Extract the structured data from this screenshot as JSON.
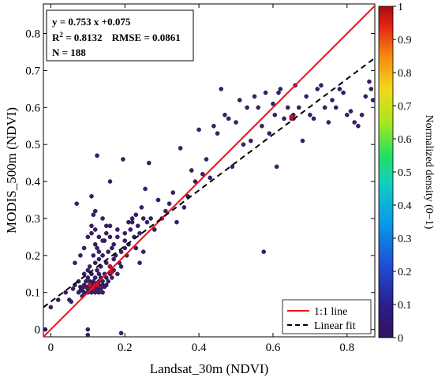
{
  "chart_data": {
    "type": "scatter",
    "xlabel": "Landsat_30m (NDVI)",
    "ylabel": "MODIS_500m (NDVI)",
    "xlim": [
      -0.02,
      0.875
    ],
    "ylim": [
      -0.02,
      0.88
    ],
    "x_ticks": [
      "0",
      "0.2",
      "0.4",
      "0.6",
      "0.8"
    ],
    "x_tick_values": [
      0,
      0.2,
      0.4,
      0.6,
      0.8
    ],
    "y_ticks": [
      "0",
      "0.1",
      "0.2",
      "0.3",
      "0.4",
      "0.5",
      "0.6",
      "0.7",
      "0.8"
    ],
    "y_tick_values": [
      0,
      0.1,
      0.2,
      0.3,
      0.4,
      0.5,
      0.6,
      0.7,
      0.8
    ],
    "grid": false,
    "stats": {
      "equation": "y = 0.753 x +0.075",
      "r2_label": "R",
      "r2_sup": "2",
      "r2_value": " = 0.8132",
      "rmse": "RMSE = 0.0861",
      "n": "N = 188"
    },
    "fit": {
      "slope": 0.753,
      "intercept": 0.075
    },
    "legend": {
      "position": "bottom-right",
      "items": [
        {
          "label": "1:1 line",
          "color": "#e8141c",
          "style": "solid"
        },
        {
          "label": "Linear fit",
          "color": "#000000",
          "style": "dashed"
        }
      ]
    },
    "colorbar": {
      "label": "Normalized density (0−1)",
      "ticks": [
        "0",
        "0.1",
        "0.2",
        "0.3",
        "0.4",
        "0.5",
        "0.6",
        "0.7",
        "0.8",
        "0.9",
        "1"
      ],
      "tick_values": [
        0,
        0.1,
        0.2,
        0.3,
        0.4,
        0.5,
        0.6,
        0.7,
        0.8,
        0.9,
        1
      ]
    },
    "colors": {
      "point_low": "#3a1e6a",
      "point_high": "#c8102e",
      "one_to_one": "#e8141c",
      "fit": "#000000"
    },
    "points": [
      [
        -0.015,
        0.0
      ],
      [
        0.0,
        0.06
      ],
      [
        0.02,
        0.08
      ],
      [
        0.04,
        0.1
      ],
      [
        0.05,
        0.08
      ],
      [
        0.055,
        0.075
      ],
      [
        0.06,
        0.11
      ],
      [
        0.065,
        0.12
      ],
      [
        0.065,
        0.18
      ],
      [
        0.07,
        0.34
      ],
      [
        0.075,
        0.1
      ],
      [
        0.075,
        0.13
      ],
      [
        0.08,
        0.105
      ],
      [
        0.08,
        0.115
      ],
      [
        0.085,
        0.09
      ],
      [
        0.085,
        0.11
      ],
      [
        0.09,
        0.12
      ],
      [
        0.09,
        0.1
      ],
      [
        0.09,
        0.15
      ],
      [
        0.095,
        0.115
      ],
      [
        0.095,
        0.13
      ],
      [
        0.1,
        0.1
      ],
      [
        0.1,
        0.11
      ],
      [
        0.1,
        0.14
      ],
      [
        0.1,
        0.16
      ],
      [
        0.1,
        0.0
      ],
      [
        0.1,
        -0.015
      ],
      [
        0.105,
        0.12
      ],
      [
        0.105,
        0.13
      ],
      [
        0.105,
        0.17
      ],
      [
        0.11,
        0.1
      ],
      [
        0.11,
        0.115
      ],
      [
        0.11,
        0.125
      ],
      [
        0.11,
        0.15
      ],
      [
        0.11,
        0.36
      ],
      [
        0.11,
        0.26
      ],
      [
        0.115,
        0.11
      ],
      [
        0.115,
        0.13
      ],
      [
        0.115,
        0.2
      ],
      [
        0.115,
        0.31
      ],
      [
        0.12,
        0.1
      ],
      [
        0.12,
        0.12
      ],
      [
        0.12,
        0.14
      ],
      [
        0.12,
        0.18
      ],
      [
        0.12,
        0.23
      ],
      [
        0.12,
        0.27
      ],
      [
        0.125,
        0.11
      ],
      [
        0.125,
        0.125
      ],
      [
        0.125,
        0.16
      ],
      [
        0.125,
        0.22
      ],
      [
        0.125,
        0.47
      ],
      [
        0.13,
        0.1
      ],
      [
        0.13,
        0.12
      ],
      [
        0.13,
        0.13
      ],
      [
        0.13,
        0.15
      ],
      [
        0.13,
        0.19
      ],
      [
        0.13,
        0.25
      ],
      [
        0.135,
        0.11
      ],
      [
        0.135,
        0.14
      ],
      [
        0.135,
        0.17
      ],
      [
        0.14,
        0.1
      ],
      [
        0.14,
        0.12
      ],
      [
        0.14,
        0.13
      ],
      [
        0.14,
        0.2
      ],
      [
        0.14,
        0.3
      ],
      [
        0.145,
        0.115
      ],
      [
        0.145,
        0.15
      ],
      [
        0.145,
        0.24
      ],
      [
        0.15,
        0.12
      ],
      [
        0.15,
        0.14
      ],
      [
        0.15,
        0.18
      ],
      [
        0.15,
        0.28
      ],
      [
        0.155,
        0.13
      ],
      [
        0.155,
        0.21
      ],
      [
        0.16,
        0.15
      ],
      [
        0.16,
        0.17
      ],
      [
        0.16,
        0.25
      ],
      [
        0.16,
        0.4
      ],
      [
        0.165,
        0.14
      ],
      [
        0.165,
        0.22
      ],
      [
        0.17,
        0.16
      ],
      [
        0.17,
        0.19
      ],
      [
        0.175,
        0.2
      ],
      [
        0.18,
        0.15
      ],
      [
        0.18,
        0.27
      ],
      [
        0.185,
        0.18
      ],
      [
        0.19,
        0.17
      ],
      [
        0.19,
        -0.01
      ],
      [
        0.195,
        0.46
      ],
      [
        0.2,
        0.22
      ],
      [
        0.2,
        0.24
      ],
      [
        0.205,
        0.2
      ],
      [
        0.21,
        0.29
      ],
      [
        0.215,
        0.27
      ],
      [
        0.22,
        0.3
      ],
      [
        0.225,
        0.25
      ],
      [
        0.23,
        0.31
      ],
      [
        0.235,
        0.28
      ],
      [
        0.24,
        0.18
      ],
      [
        0.245,
        0.33
      ],
      [
        0.25,
        0.21
      ],
      [
        0.255,
        0.38
      ],
      [
        0.26,
        0.29
      ],
      [
        0.265,
        0.45
      ],
      [
        0.27,
        0.3
      ],
      [
        0.28,
        0.27
      ],
      [
        0.29,
        0.35
      ],
      [
        0.3,
        0.3
      ],
      [
        0.31,
        0.32
      ],
      [
        0.32,
        0.34
      ],
      [
        0.33,
        0.37
      ],
      [
        0.34,
        0.29
      ],
      [
        0.35,
        0.49
      ],
      [
        0.36,
        0.33
      ],
      [
        0.37,
        0.36
      ],
      [
        0.38,
        0.43
      ],
      [
        0.39,
        0.4
      ],
      [
        0.4,
        0.54
      ],
      [
        0.41,
        0.42
      ],
      [
        0.42,
        0.46
      ],
      [
        0.43,
        0.41
      ],
      [
        0.44,
        0.55
      ],
      [
        0.45,
        0.53
      ],
      [
        0.46,
        0.65
      ],
      [
        0.47,
        0.58
      ],
      [
        0.48,
        0.57
      ],
      [
        0.49,
        0.44
      ],
      [
        0.5,
        0.56
      ],
      [
        0.51,
        0.62
      ],
      [
        0.52,
        0.5
      ],
      [
        0.53,
        0.6
      ],
      [
        0.54,
        0.51
      ],
      [
        0.55,
        0.63
      ],
      [
        0.56,
        0.6
      ],
      [
        0.57,
        0.55
      ],
      [
        0.575,
        0.21
      ],
      [
        0.58,
        0.64
      ],
      [
        0.59,
        0.53
      ],
      [
        0.6,
        0.61
      ],
      [
        0.605,
        0.58
      ],
      [
        0.61,
        0.44
      ],
      [
        0.615,
        0.64
      ],
      [
        0.62,
        0.65
      ],
      [
        0.63,
        0.57
      ],
      [
        0.64,
        0.6
      ],
      [
        0.65,
        0.57
      ],
      [
        0.655,
        0.58
      ],
      [
        0.66,
        0.66
      ],
      [
        0.67,
        0.6
      ],
      [
        0.68,
        0.51
      ],
      [
        0.69,
        0.63
      ],
      [
        0.7,
        0.58
      ],
      [
        0.71,
        0.57
      ],
      [
        0.72,
        0.65
      ],
      [
        0.73,
        0.66
      ],
      [
        0.74,
        0.6
      ],
      [
        0.75,
        0.56
      ],
      [
        0.76,
        0.62
      ],
      [
        0.77,
        0.6
      ],
      [
        0.78,
        0.65
      ],
      [
        0.79,
        0.64
      ],
      [
        0.8,
        0.58
      ],
      [
        0.81,
        0.59
      ],
      [
        0.82,
        0.56
      ],
      [
        0.83,
        0.55
      ],
      [
        0.84,
        0.58
      ],
      [
        0.85,
        0.63
      ],
      [
        0.86,
        0.67
      ],
      [
        0.865,
        0.65
      ],
      [
        0.87,
        0.62
      ],
      [
        0.08,
        0.2
      ],
      [
        0.09,
        0.22
      ],
      [
        0.1,
        0.25
      ],
      [
        0.11,
        0.28
      ],
      [
        0.12,
        0.32
      ],
      [
        0.13,
        0.21
      ],
      [
        0.14,
        0.24
      ],
      [
        0.15,
        0.26
      ],
      [
        0.16,
        0.28
      ],
      [
        0.17,
        0.23
      ],
      [
        0.18,
        0.25
      ],
      [
        0.19,
        0.21
      ],
      [
        0.2,
        0.26
      ],
      [
        0.21,
        0.23
      ],
      [
        0.22,
        0.29
      ],
      [
        0.23,
        0.22
      ],
      [
        0.24,
        0.26
      ],
      [
        0.25,
        0.3
      ]
    ],
    "dense_points": [
      [
        0.105,
        0.12
      ],
      [
        0.11,
        0.11
      ],
      [
        0.115,
        0.115
      ],
      [
        0.12,
        0.12
      ],
      [
        0.125,
        0.12
      ],
      [
        0.16,
        0.17
      ],
      [
        0.165,
        0.155
      ],
      [
        0.65,
        0.575
      ],
      [
        0.655,
        0.57
      ]
    ]
  }
}
